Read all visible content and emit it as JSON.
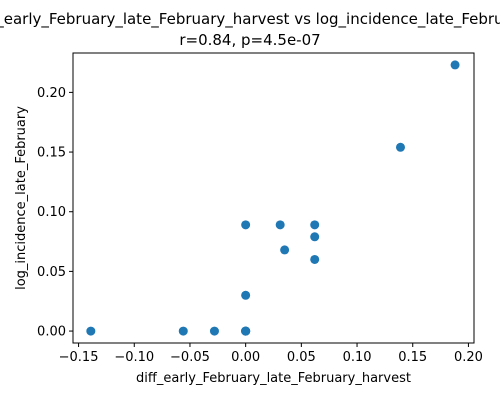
{
  "chart_data": {
    "type": "scatter",
    "title": "diff_early_February_late_February_harvest vs log_incidence_late_February",
    "subtitle": "r=0.84, p=4.5e-07",
    "xlabel": "diff_early_February_late_February_harvest",
    "ylabel": "log_incidence_late_February",
    "xlim": [
      -0.155,
      0.205
    ],
    "ylim": [
      -0.01,
      0.233
    ],
    "xticks": [
      -0.15,
      -0.1,
      -0.05,
      0.0,
      0.05,
      0.1,
      0.15,
      0.2
    ],
    "xtick_labels": [
      "−0.15",
      "−0.10",
      "−0.05",
      "0.00",
      "0.05",
      "0.10",
      "0.15",
      "0.20"
    ],
    "yticks": [
      0.0,
      0.05,
      0.1,
      0.15,
      0.2
    ],
    "ytick_labels": [
      "0.00",
      "0.05",
      "0.10",
      "0.15",
      "0.20"
    ],
    "grid": false,
    "marker_color": "#1f77b4",
    "points": [
      {
        "x": -0.139,
        "y": 0.0
      },
      {
        "x": -0.056,
        "y": 0.0
      },
      {
        "x": -0.028,
        "y": 0.0
      },
      {
        "x": 0.0,
        "y": 0.0
      },
      {
        "x": 0.0,
        "y": 0.0
      },
      {
        "x": 0.0,
        "y": 0.0
      },
      {
        "x": 0.0,
        "y": 0.0
      },
      {
        "x": 0.0,
        "y": 0.03
      },
      {
        "x": 0.0,
        "y": 0.089
      },
      {
        "x": 0.031,
        "y": 0.089
      },
      {
        "x": 0.035,
        "y": 0.068
      },
      {
        "x": 0.062,
        "y": 0.089
      },
      {
        "x": 0.062,
        "y": 0.079
      },
      {
        "x": 0.062,
        "y": 0.06
      },
      {
        "x": 0.139,
        "y": 0.154
      },
      {
        "x": 0.188,
        "y": 0.223
      }
    ]
  }
}
